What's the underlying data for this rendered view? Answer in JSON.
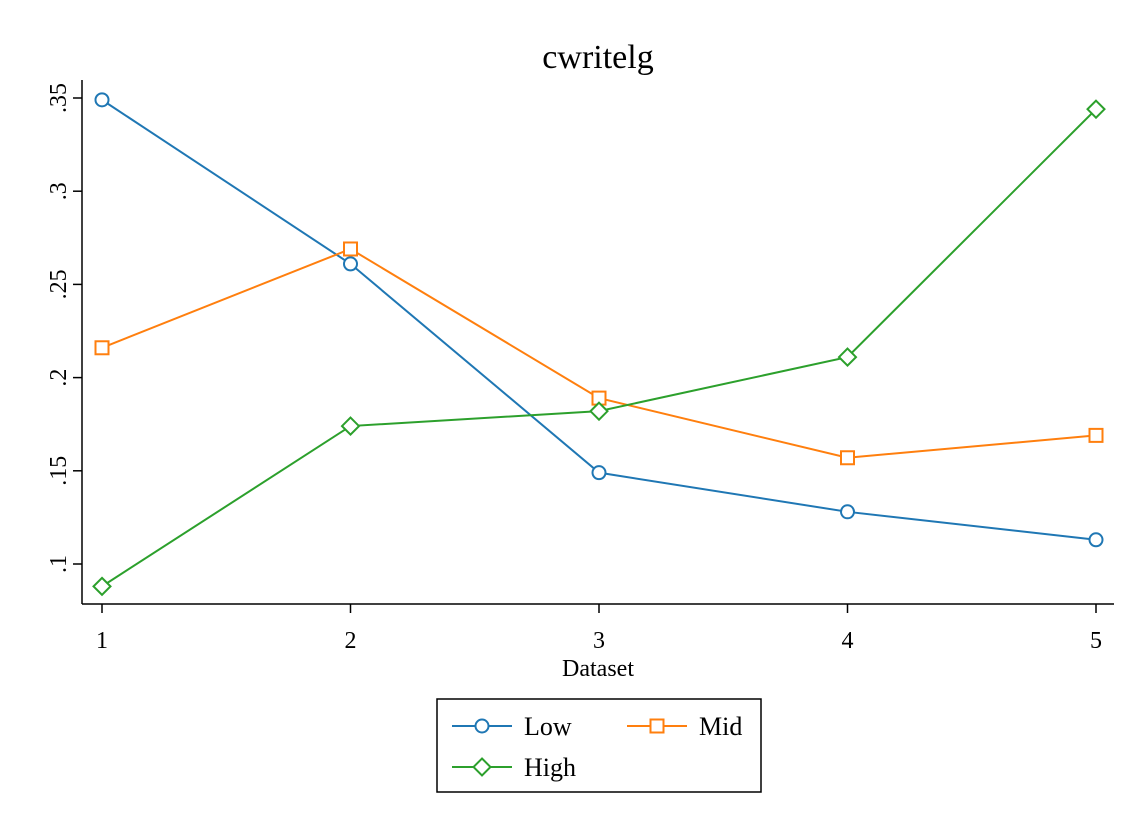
{
  "chart_data": {
    "type": "line",
    "title": "cwritelg",
    "xlabel": "Dataset",
    "ylabel": "",
    "x": [
      1,
      2,
      3,
      4,
      5
    ],
    "x_tick_labels": [
      "1",
      "2",
      "3",
      "4",
      "5"
    ],
    "xlim": [
      1,
      5
    ],
    "ylim": [
      0.1,
      0.35
    ],
    "y_ticks": [
      0.1,
      0.15,
      0.2,
      0.25,
      0.3,
      0.35
    ],
    "y_tick_labels": [
      ".1",
      ".15",
      ".2",
      ".25",
      ".3",
      ".35"
    ],
    "grid": false,
    "legend_placement": "bottom",
    "series": [
      {
        "name": "Low",
        "color": "#1f77b4",
        "marker": "circle",
        "values": [
          0.349,
          0.261,
          0.149,
          0.128,
          0.113
        ]
      },
      {
        "name": "Mid",
        "color": "#ff7f0e",
        "marker": "square",
        "values": [
          0.216,
          0.269,
          0.189,
          0.157,
          0.169
        ]
      },
      {
        "name": "High",
        "color": "#2ca02c",
        "marker": "diamond",
        "values": [
          0.088,
          0.174,
          0.182,
          0.211,
          0.344
        ]
      }
    ]
  }
}
